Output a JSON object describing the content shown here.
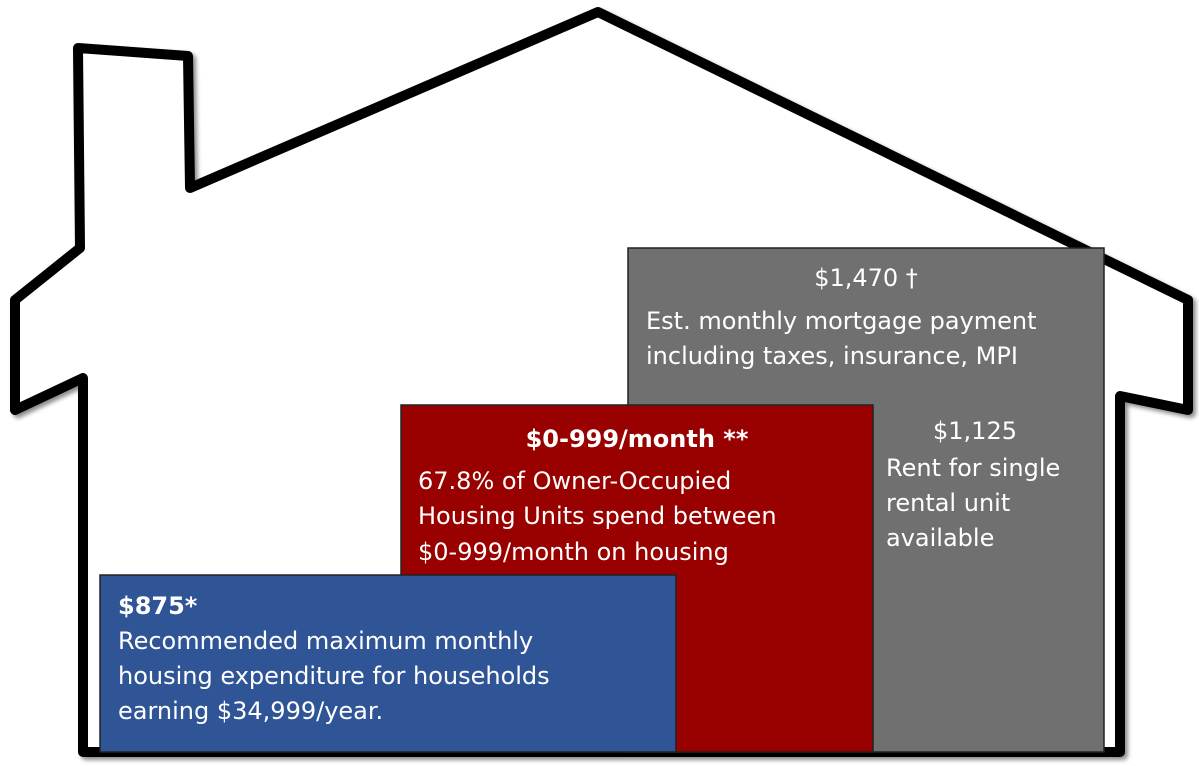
{
  "blocks": [
    {
      "heading": "$1,470 †",
      "lines": [
        "Est. monthly mortgage payment",
        "including taxes, insurance, MPI"
      ]
    },
    {
      "heading": "$1,125",
      "lines": [
        "Rent for single",
        "rental unit",
        "available"
      ]
    },
    {
      "heading": "$0-999/month **",
      "lines": [
        "67.8% of Owner-Occupied",
        "Housing Units spend between",
        "$0-999/month on housing"
      ]
    },
    {
      "heading": "$875*",
      "lines": [
        "Recommended maximum monthly",
        "housing expenditure for households",
        "earning $34,999/year."
      ]
    }
  ]
}
